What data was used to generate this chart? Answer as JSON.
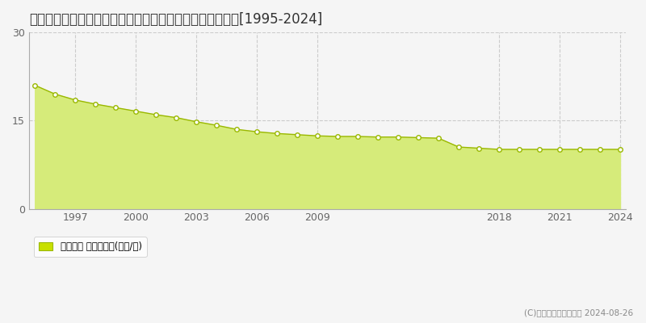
{
  "title": "岐阜県岐阜市小西郷２丁目９４番外　地価公示　地価推移[1995-2024]",
  "years": [
    1995,
    1996,
    1997,
    1998,
    1999,
    2000,
    2001,
    2002,
    2003,
    2004,
    2005,
    2006,
    2007,
    2008,
    2009,
    2010,
    2011,
    2012,
    2013,
    2014,
    2015,
    2016,
    2017,
    2018,
    2019,
    2020,
    2021,
    2022,
    2023,
    2024
  ],
  "values": [
    21.0,
    19.5,
    18.5,
    17.8,
    17.2,
    16.6,
    16.0,
    15.5,
    14.8,
    14.2,
    13.5,
    13.1,
    12.8,
    12.6,
    12.4,
    12.3,
    12.3,
    12.2,
    12.2,
    12.1,
    12.0,
    10.5,
    10.3,
    10.1,
    10.1,
    10.1,
    10.1,
    10.1,
    10.1,
    10.1
  ],
  "line_color": "#9ab800",
  "fill_color": "#d6eb7a",
  "fill_alpha": 1.0,
  "marker_facecolor": "#ffffff",
  "marker_edgecolor": "#9ab800",
  "marker_size": 4,
  "ylim": [
    0,
    30
  ],
  "yticks": [
    0,
    15,
    30
  ],
  "grid_color": "#cccccc",
  "grid_style": "--",
  "background_color": "#f5f5f5",
  "plot_bg_color": "#f5f5f5",
  "legend_label": "地価公示 平均坪単価(万円/坪)",
  "legend_facecolor": "#c8e000",
  "legend_edgecolor": "#9ab800",
  "copyright_text": "(C)土地価格ドットコム 2024-08-26",
  "xlabel_ticks": [
    1997,
    2000,
    2003,
    2006,
    2009,
    2018,
    2021,
    2024
  ],
  "title_fontsize": 12,
  "tick_fontsize": 9,
  "axis_tick_color": "#666666",
  "spine_color": "#aaaaaa"
}
